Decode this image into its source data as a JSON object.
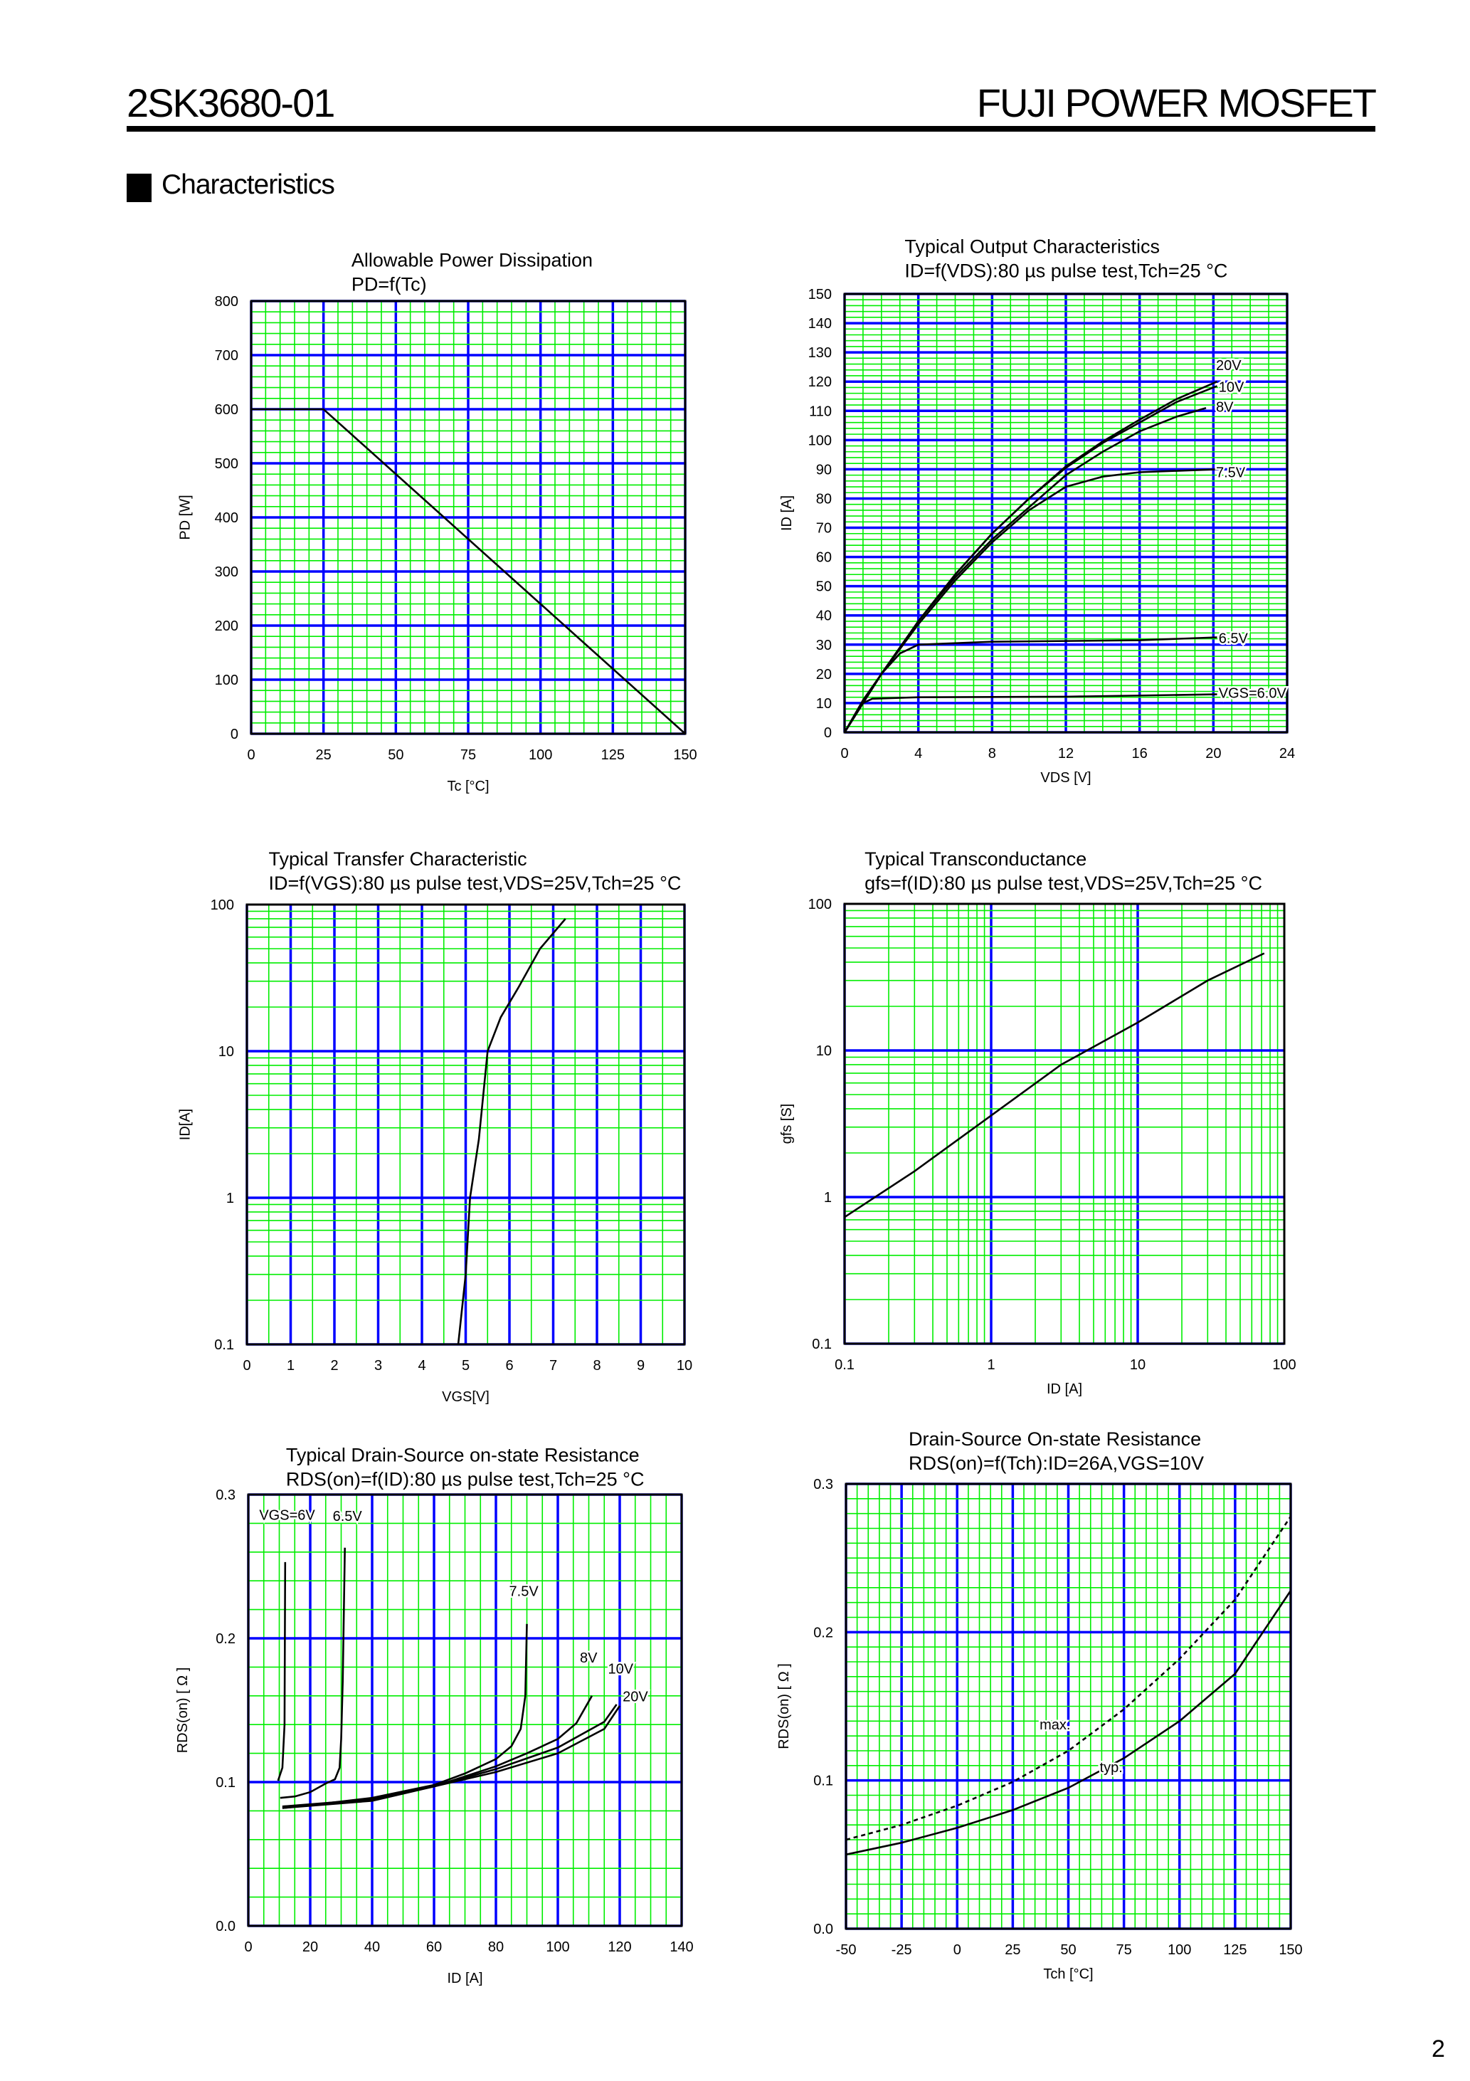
{
  "header": {
    "part_number": "2SK3680-01",
    "brand": "FUJI POWER MOSFET"
  },
  "section": {
    "title": "Characteristics"
  },
  "page_number": "2",
  "colors": {
    "major_grid": "#0000ff",
    "minor_grid": "#00ee00",
    "curve": "#000000"
  },
  "chart_data": [
    {
      "type": "line",
      "title": [
        "Allowable Power Dissipation",
        "PD=f(Tc)"
      ],
      "xlabel": "Tc [°C]",
      "ylabel": "PD [W]",
      "xscale": "linear",
      "yscale": "linear",
      "xlim": [
        0,
        150
      ],
      "ylim": [
        0,
        800
      ],
      "xticks": [
        0,
        25,
        50,
        75,
        100,
        125,
        150
      ],
      "yticks": [
        0,
        100,
        200,
        300,
        400,
        500,
        600,
        700,
        800
      ],
      "grid": true,
      "series": [
        {
          "points": [
            [
              0,
              600
            ],
            [
              25,
              600
            ],
            [
              150,
              0
            ]
          ]
        }
      ]
    },
    {
      "type": "line",
      "title": [
        "Typical Output Characteristics",
        "ID=f(VDS):80 µs pulse test,Tch=25 °C"
      ],
      "xlabel": "VDS [V]",
      "ylabel": "ID [A]",
      "xscale": "linear",
      "yscale": "linear",
      "xlim": [
        0,
        24
      ],
      "ylim": [
        0,
        150
      ],
      "xticks": [
        0,
        4,
        8,
        12,
        16,
        20,
        24
      ],
      "yticks": [
        0,
        10,
        20,
        30,
        40,
        50,
        60,
        70,
        80,
        90,
        100,
        110,
        120,
        130,
        140,
        150
      ],
      "grid": true,
      "series": [
        {
          "name": "20V",
          "points": [
            [
              0,
              0
            ],
            [
              1,
              10
            ],
            [
              2,
              20
            ],
            [
              4,
              38
            ],
            [
              6,
              54
            ],
            [
              8,
              68
            ],
            [
              10,
              80
            ],
            [
              12,
              91
            ],
            [
              14,
              99.5
            ],
            [
              16,
              107
            ],
            [
              18,
              114
            ],
            [
              20.2,
              120
            ]
          ]
        },
        {
          "name": "10V",
          "points": [
            [
              0,
              0
            ],
            [
              1,
              10
            ],
            [
              2,
              20
            ],
            [
              4,
              38
            ],
            [
              6,
              54
            ],
            [
              8,
              68
            ],
            [
              10,
              80
            ],
            [
              12,
              90.5
            ],
            [
              14,
              99
            ],
            [
              16,
              106
            ],
            [
              18,
              113
            ],
            [
              20.2,
              118.5
            ]
          ]
        },
        {
          "name": "8V",
          "points": [
            [
              0,
              0
            ],
            [
              1,
              10
            ],
            [
              2,
              20
            ],
            [
              4,
              38
            ],
            [
              6,
              53
            ],
            [
              8,
              66
            ],
            [
              10,
              77
            ],
            [
              12,
              88
            ],
            [
              14,
              96
            ],
            [
              16,
              103
            ],
            [
              18,
              108
            ],
            [
              19.6,
              111
            ]
          ]
        },
        {
          "name": "7.5V",
          "points": [
            [
              0,
              0
            ],
            [
              1,
              10
            ],
            [
              2,
              20
            ],
            [
              4,
              37
            ],
            [
              6,
              52
            ],
            [
              8,
              65
            ],
            [
              10,
              76
            ],
            [
              12,
              84
            ],
            [
              14,
              87.5
            ],
            [
              16,
              89
            ],
            [
              20.2,
              90
            ]
          ]
        },
        {
          "name": "6.5V",
          "points": [
            [
              0,
              0
            ],
            [
              1,
              11
            ],
            [
              2,
              20
            ],
            [
              3,
              27
            ],
            [
              4,
              30
            ],
            [
              8,
              31
            ],
            [
              16,
              31.5
            ],
            [
              20.2,
              32.5
            ]
          ]
        },
        {
          "name": "VGS=6.0V",
          "points": [
            [
              0,
              0
            ],
            [
              1,
              10
            ],
            [
              1.5,
              11.5
            ],
            [
              4,
              12
            ],
            [
              12,
              12.2
            ],
            [
              20.2,
              13
            ]
          ]
        }
      ]
    },
    {
      "type": "line",
      "title": [
        "Typical Transfer Characteristic",
        "ID=f(VGS):80 µs pulse test,VDS=25V,Tch=25  °C"
      ],
      "xlabel": "VGS[V]",
      "ylabel": "ID[A]",
      "xscale": "linear",
      "yscale": "log",
      "xlim": [
        0,
        10
      ],
      "ylim": [
        0.1,
        100
      ],
      "xticks": [
        0,
        1,
        2,
        3,
        4,
        5,
        6,
        7,
        8,
        9,
        10
      ],
      "yticks": [
        0.1,
        1,
        10,
        100
      ],
      "grid": true,
      "series": [
        {
          "points": [
            [
              4.83,
              0.1
            ],
            [
              5.0,
              0.3
            ],
            [
              5.1,
              1
            ],
            [
              5.3,
              2.5
            ],
            [
              5.5,
              10
            ],
            [
              5.8,
              17
            ],
            [
              6.2,
              27
            ],
            [
              6.7,
              50
            ],
            [
              7.28,
              80
            ]
          ]
        }
      ]
    },
    {
      "type": "line",
      "title": [
        "Typical Transconductance",
        "gfs=f(ID):80 µs pulse test,VDS=25V,Tch=25  °C"
      ],
      "xlabel": "ID [A]",
      "ylabel": "gfs [S]",
      "xscale": "log",
      "yscale": "log",
      "xlim": [
        0.1,
        100
      ],
      "ylim": [
        0.1,
        100
      ],
      "xticks": [
        0.1,
        1,
        10,
        100
      ],
      "yticks": [
        0.1,
        1,
        10,
        100
      ],
      "grid": true,
      "series": [
        {
          "points": [
            [
              0.1,
              0.73
            ],
            [
              0.3,
              1.5
            ],
            [
              1,
              3.6
            ],
            [
              3,
              8
            ],
            [
              10,
              15.5
            ],
            [
              30,
              30
            ],
            [
              73,
              46
            ]
          ]
        }
      ]
    },
    {
      "type": "line",
      "title": [
        "Typical Drain-Source on-state Resistance",
        "RDS(on)=f(ID):80  µs pulse test,Tch=25  °C"
      ],
      "xlabel": "ID [A]",
      "ylabel": "RDS(on) [ Ω ]",
      "xscale": "linear",
      "yscale": "linear",
      "xlim": [
        0,
        140
      ],
      "ylim": [
        0,
        0.3
      ],
      "xticks": [
        0,
        20,
        40,
        60,
        80,
        100,
        120,
        140
      ],
      "yticks": [
        "0.0",
        "0.1",
        "0.2",
        "0.3"
      ],
      "grid": true,
      "series": [
        {
          "name": "VGS=6V",
          "points": [
            [
              9.6,
              0.101
            ],
            [
              11,
              0.11
            ],
            [
              11.7,
              0.14
            ],
            [
              11.9,
              0.253
            ]
          ]
        },
        {
          "name": "6.5V",
          "points": [
            [
              10.3,
              0.089
            ],
            [
              15,
              0.09
            ],
            [
              20,
              0.093
            ],
            [
              25,
              0.099
            ],
            [
              28,
              0.102
            ],
            [
              29.5,
              0.11
            ],
            [
              30,
              0.13
            ],
            [
              30.5,
              0.17
            ],
            [
              31.2,
              0.263
            ]
          ]
        },
        {
          "name": "7.5V",
          "points": [
            [
              11,
              0.083
            ],
            [
              20,
              0.084
            ],
            [
              40,
              0.089
            ],
            [
              60,
              0.098
            ],
            [
              70,
              0.106
            ],
            [
              80,
              0.116
            ],
            [
              85,
              0.125
            ],
            [
              88,
              0.137
            ],
            [
              89.5,
              0.16
            ],
            [
              90,
              0.21
            ]
          ]
        },
        {
          "name": "8V",
          "points": [
            [
              11,
              0.083
            ],
            [
              40,
              0.088
            ],
            [
              60,
              0.097
            ],
            [
              80,
              0.111
            ],
            [
              90,
              0.12
            ],
            [
              100,
              0.13
            ],
            [
              106,
              0.141
            ],
            [
              111,
              0.16
            ]
          ]
        },
        {
          "name": "10V",
          "points": [
            [
              11,
              0.082
            ],
            [
              40,
              0.088
            ],
            [
              60,
              0.097
            ],
            [
              80,
              0.109
            ],
            [
              100,
              0.124
            ],
            [
              115,
              0.142
            ],
            [
              119,
              0.154
            ]
          ]
        },
        {
          "name": "20V",
          "points": [
            [
              11,
              0.082
            ],
            [
              40,
              0.087
            ],
            [
              60,
              0.097
            ],
            [
              80,
              0.107
            ],
            [
              100,
              0.12
            ],
            [
              115,
              0.137
            ],
            [
              120,
              0.153
            ]
          ]
        }
      ]
    },
    {
      "type": "line",
      "title": [
        "Drain-Source On-state Resistance",
        "RDS(on)=f(Tch):ID=26A,VGS=10V"
      ],
      "xlabel": "Tch [°C]",
      "ylabel": "RDS(on) [ Ω ]",
      "xscale": "linear",
      "yscale": "linear",
      "xlim": [
        -50,
        150
      ],
      "ylim": [
        0,
        0.3
      ],
      "xticks": [
        -50,
        -25,
        0,
        25,
        50,
        75,
        100,
        125,
        150
      ],
      "yticks": [
        "0.0",
        "0.1",
        "0.2",
        "0.3"
      ],
      "grid": true,
      "series": [
        {
          "name": "max.",
          "dashed": true,
          "points": [
            [
              -50,
              0.06
            ],
            [
              -25,
              0.07
            ],
            [
              0,
              0.083
            ],
            [
              25,
              0.099
            ],
            [
              50,
              0.12
            ],
            [
              75,
              0.148
            ],
            [
              100,
              0.182
            ],
            [
              125,
              0.222
            ],
            [
              150,
              0.278
            ]
          ]
        },
        {
          "name": "typ.",
          "dashed": false,
          "points": [
            [
              -50,
              0.05
            ],
            [
              -25,
              0.058
            ],
            [
              0,
              0.068
            ],
            [
              25,
              0.08
            ],
            [
              50,
              0.095
            ],
            [
              75,
              0.115
            ],
            [
              100,
              0.14
            ],
            [
              125,
              0.172
            ],
            [
              150,
              0.228
            ]
          ]
        }
      ]
    }
  ]
}
